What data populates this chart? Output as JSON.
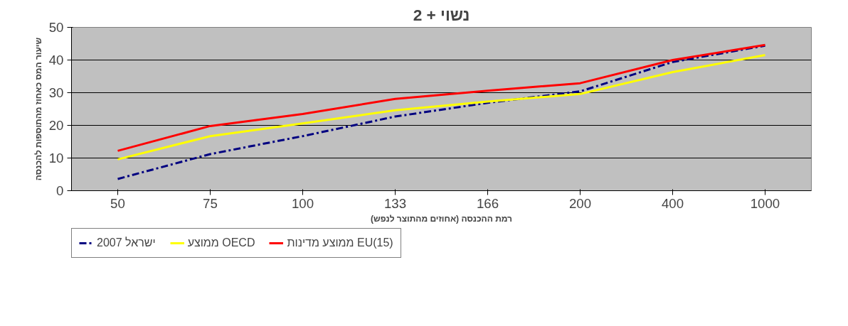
{
  "chart_data": {
    "type": "line",
    "title": "נשוי + 2",
    "xlabel": "רמת ההכנסה (אחוזים מהתוצר לנפש)",
    "ylabel": "שיעור המס כאחוז מהתוספות להכנסה",
    "categories": [
      "50",
      "75",
      "100",
      "133",
      "166",
      "200",
      "400",
      "1000"
    ],
    "series": [
      {
        "name": "ישראל 2007",
        "color": "#000080",
        "line_style": "dashdot",
        "values": [
          3.6,
          11.2,
          16.7,
          22.7,
          26.9,
          30.4,
          39.4,
          44.4
        ]
      },
      {
        "name": "ממוצע OECD",
        "color": "#ffff00",
        "line_style": "solid",
        "values": [
          9.6,
          16.7,
          20.6,
          24.6,
          27.3,
          29.6,
          36.3,
          41.5
        ]
      },
      {
        "name": "ממוצע מדינות EU(15)",
        "color": "#ff0000",
        "line_style": "solid",
        "values": [
          12.2,
          19.8,
          23.5,
          28.1,
          30.6,
          32.9,
          40.0,
          44.6
        ]
      }
    ],
    "ylim": [
      0,
      50
    ],
    "yticks": [
      0,
      10,
      20,
      30,
      40,
      50
    ],
    "grid": "y",
    "legend": "bottom",
    "marker": "none"
  }
}
